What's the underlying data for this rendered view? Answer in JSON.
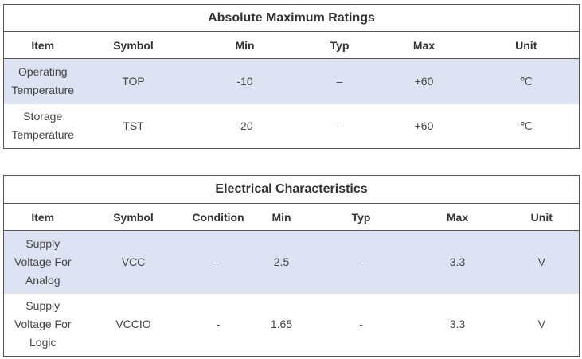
{
  "absolute_maximum_ratings": {
    "title": "Absolute Maximum Ratings",
    "headers": [
      "Item",
      "Symbol",
      "Min",
      "Typ",
      "Max",
      "Unit"
    ],
    "rows": [
      [
        "Operating Temperature",
        "TOP",
        "-10",
        "–",
        "+60",
        "℃"
      ],
      [
        "Storage Temperature",
        "TST",
        "-20",
        "–",
        "+60",
        "℃"
      ]
    ]
  },
  "electrical_characteristics": {
    "title": "Electrical Characteristics",
    "headers": [
      "Item",
      "Symbol",
      "Condition",
      "Min",
      "Typ",
      "Max",
      "Unit"
    ],
    "rows": [
      [
        "Supply Voltage For Analog",
        "VCC",
        "–",
        "2.5",
        "-",
        "3.3",
        "V"
      ],
      [
        "Supply Voltage For Logic",
        "VCCIO",
        "-",
        "1.65",
        "-",
        "3.3",
        "V"
      ]
    ]
  },
  "colors": {
    "row_shade": "#dde3f2",
    "border": "#555555"
  }
}
